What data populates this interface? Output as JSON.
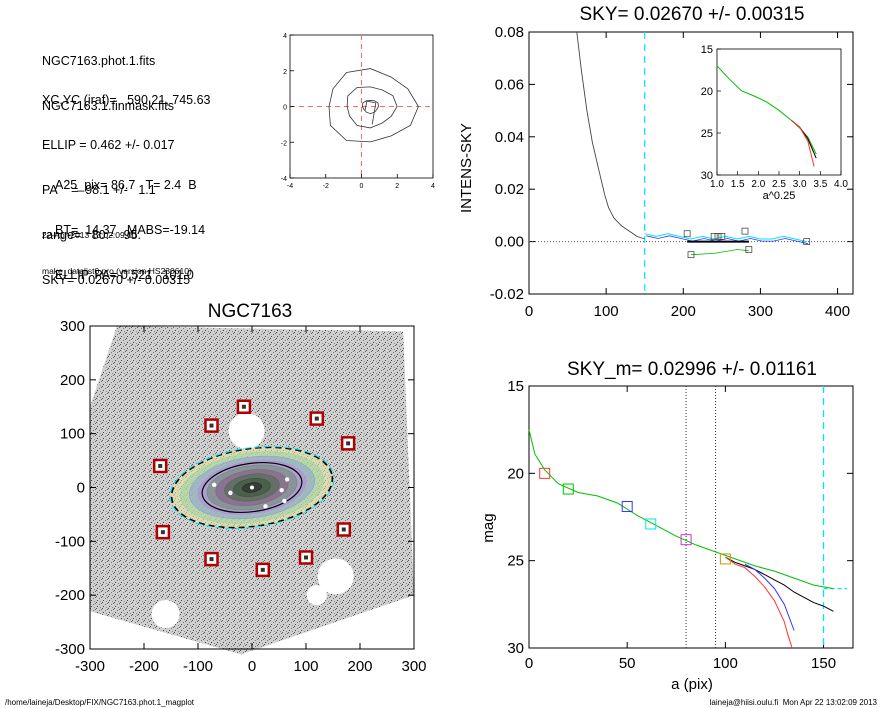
{
  "header": {
    "files": [
      "NGC7163.phot.1.fits",
      "NGC7163.1.finmask.fits"
    ],
    "params": [
      "XC,YC (iraf)=   590.21, 745.63",
      "ELLIP = 0.462 +/- 0.017",
      "PA    =  98.1 +/-   1.1",
      "range=   80.-   95.",
      "SKY= 0.02670 +/- 0.00315"
    ],
    "results": [
      "A25_pix= 86.7   T= 2.4  B",
      "BT=  14.37   MABS=-19.14",
      "ELLIP, PA= 0.521   101.0"
    ],
    "date": "22-Apr-2013 13:02:09.00",
    "program": "make_datalist0.pro (version HS230610)"
  },
  "footer": {
    "path": "/home/laineja/Desktop/FIX/NGC7163.phot.1_magplot",
    "user": "laineja@hiisi.oulu.fi  Mon Apr 22 13:02:09 2013"
  },
  "colors": {
    "mask_square": "#b00000",
    "sky_line": "#00e5ff",
    "center_cross": "#ff6666",
    "fit_line": "#00c000",
    "black": "#000000"
  },
  "chart_data": [
    {
      "id": "contour_inset",
      "type": "contour",
      "title": "",
      "xlabel": "",
      "ylabel": "",
      "xlim": [
        -4,
        4
      ],
      "ylim": [
        -4,
        4
      ],
      "xticks": [
        -4,
        -2,
        0,
        2,
        4
      ],
      "yticks": [
        -4,
        -2,
        0,
        2,
        4
      ],
      "contour_radii": [
        0.45,
        1.4,
        2.5
      ],
      "center": [
        0,
        0
      ]
    },
    {
      "id": "sky_plot",
      "type": "line",
      "title": "SKY= 0.02670 +/- 0.00315",
      "xlabel": "",
      "ylabel": "INTENS-SKY",
      "xlim": [
        0,
        420
      ],
      "ylim": [
        -0.02,
        0.08
      ],
      "xticks": [
        "0",
        "100",
        "200",
        "300",
        "400"
      ],
      "yticks": [
        "-0.02",
        "0.00",
        "0.02",
        "0.04",
        "0.06",
        "0.08"
      ],
      "profile": {
        "x": [
          62,
          68,
          75,
          82,
          90,
          98,
          103,
          110,
          120,
          130,
          140,
          150
        ],
        "y": [
          0.08,
          0.065,
          0.05,
          0.038,
          0.028,
          0.018,
          0.013,
          0.009,
          0.006,
          0.004,
          0.002,
          0.001
        ]
      },
      "sky_aperture": 150,
      "sky_mean_range": [
        205,
        285
      ],
      "inset": {
        "xlabel": "a^0.25",
        "xlim": [
          1.0,
          4.0
        ],
        "ylim": [
          15,
          30
        ],
        "xticks": [
          "1.0",
          "1.5",
          "2.0",
          "2.5",
          "3.0",
          "3.5",
          "4.0"
        ],
        "yticks": [
          "15",
          "20",
          "25",
          "30"
        ],
        "green": {
          "x": [
            1.0,
            1.3,
            1.6,
            1.9,
            2.2,
            2.5,
            2.8,
            3.0,
            3.2,
            3.4
          ],
          "y": [
            17,
            18.6,
            20.0,
            20.6,
            21.3,
            22.3,
            23.5,
            24.4,
            25.5,
            27.5
          ]
        },
        "black": {
          "x": [
            2.8,
            3.0,
            3.2,
            3.4
          ],
          "y": [
            23.5,
            24.3,
            25.7,
            28.0
          ]
        },
        "red": {
          "x": [
            2.8,
            3.0,
            3.2,
            3.35
          ],
          "y": [
            23.5,
            24.3,
            26.0,
            29.0
          ]
        }
      }
    },
    {
      "id": "galaxy_image",
      "type": "image",
      "title": "NGC7163",
      "xlabel": "",
      "ylabel": "",
      "xlim": [
        -300,
        300
      ],
      "ylim": [
        -300,
        300
      ],
      "xticks": [
        "-300",
        "-200",
        "-100",
        "0",
        "100",
        "200",
        "300"
      ],
      "yticks": [
        "-300",
        "-200",
        "-100",
        "0",
        "100",
        "200",
        "300"
      ],
      "mask_squares": [
        [
          -15,
          150
        ],
        [
          120,
          128
        ],
        [
          -75,
          115
        ],
        [
          178,
          82
        ],
        [
          -170,
          40
        ],
        [
          -165,
          -83
        ],
        [
          170,
          -78
        ],
        [
          -75,
          -133
        ],
        [
          100,
          -130
        ],
        [
          20,
          -153
        ]
      ],
      "ellipse": {
        "a": 150,
        "b": 72,
        "pa_deg": 98.1
      }
    },
    {
      "id": "mag_profile",
      "type": "line",
      "title": "SKY_m=  0.02996 +/- 0.01161",
      "xlabel": "a (pix)",
      "ylabel": "mag",
      "xlim": [
        0,
        165
      ],
      "ylim": [
        30,
        15
      ],
      "xticks": [
        "0",
        "50",
        "100",
        "150"
      ],
      "yticks": [
        "15",
        "20",
        "25",
        "30"
      ],
      "series": [
        {
          "x": [
            0,
            3,
            8,
            15,
            25,
            35,
            45,
            55,
            65,
            75,
            85,
            95,
            105,
            115,
            125,
            135,
            145,
            155
          ],
          "y": [
            17.5,
            18.9,
            19.8,
            20.6,
            21.1,
            21.3,
            21.7,
            22.4,
            23.0,
            23.6,
            24.1,
            24.5,
            24.9,
            25.3,
            25.6,
            26.0,
            26.4,
            26.6
          ],
          "color": "#00c000"
        },
        {
          "x": [
            100,
            105,
            110,
            115,
            120,
            125,
            130,
            135,
            140,
            145,
            150,
            155
          ],
          "y": [
            24.8,
            25.1,
            25.3,
            25.5,
            25.8,
            26.1,
            26.4,
            26.8,
            27.1,
            27.4,
            27.6,
            27.9
          ],
          "color": "#000000"
        },
        {
          "x": [
            100,
            105,
            110,
            115,
            120,
            125,
            130,
            132,
            134
          ],
          "y": [
            24.8,
            25.2,
            25.4,
            25.9,
            26.5,
            27.3,
            28.5,
            29.3,
            30.0
          ],
          "color": "#ff3333"
        },
        {
          "x": [
            110,
            115,
            120,
            125,
            130,
            135
          ],
          "y": [
            25.2,
            25.5,
            26.0,
            26.6,
            27.5,
            29.0
          ],
          "color": "#3333ff"
        }
      ],
      "markers": {
        "x": [
          8,
          20,
          50,
          62,
          80,
          100
        ],
        "y": [
          20.0,
          20.9,
          21.9,
          22.9,
          23.8,
          24.9
        ],
        "colors": [
          "#ff3333",
          "#00c000",
          "#3333ff",
          "#00e5ff",
          "#cc33cc",
          "#cc9900"
        ]
      },
      "vlines": [
        80,
        95
      ],
      "sky_radius": 150,
      "sky_level": 26.6
    }
  ]
}
